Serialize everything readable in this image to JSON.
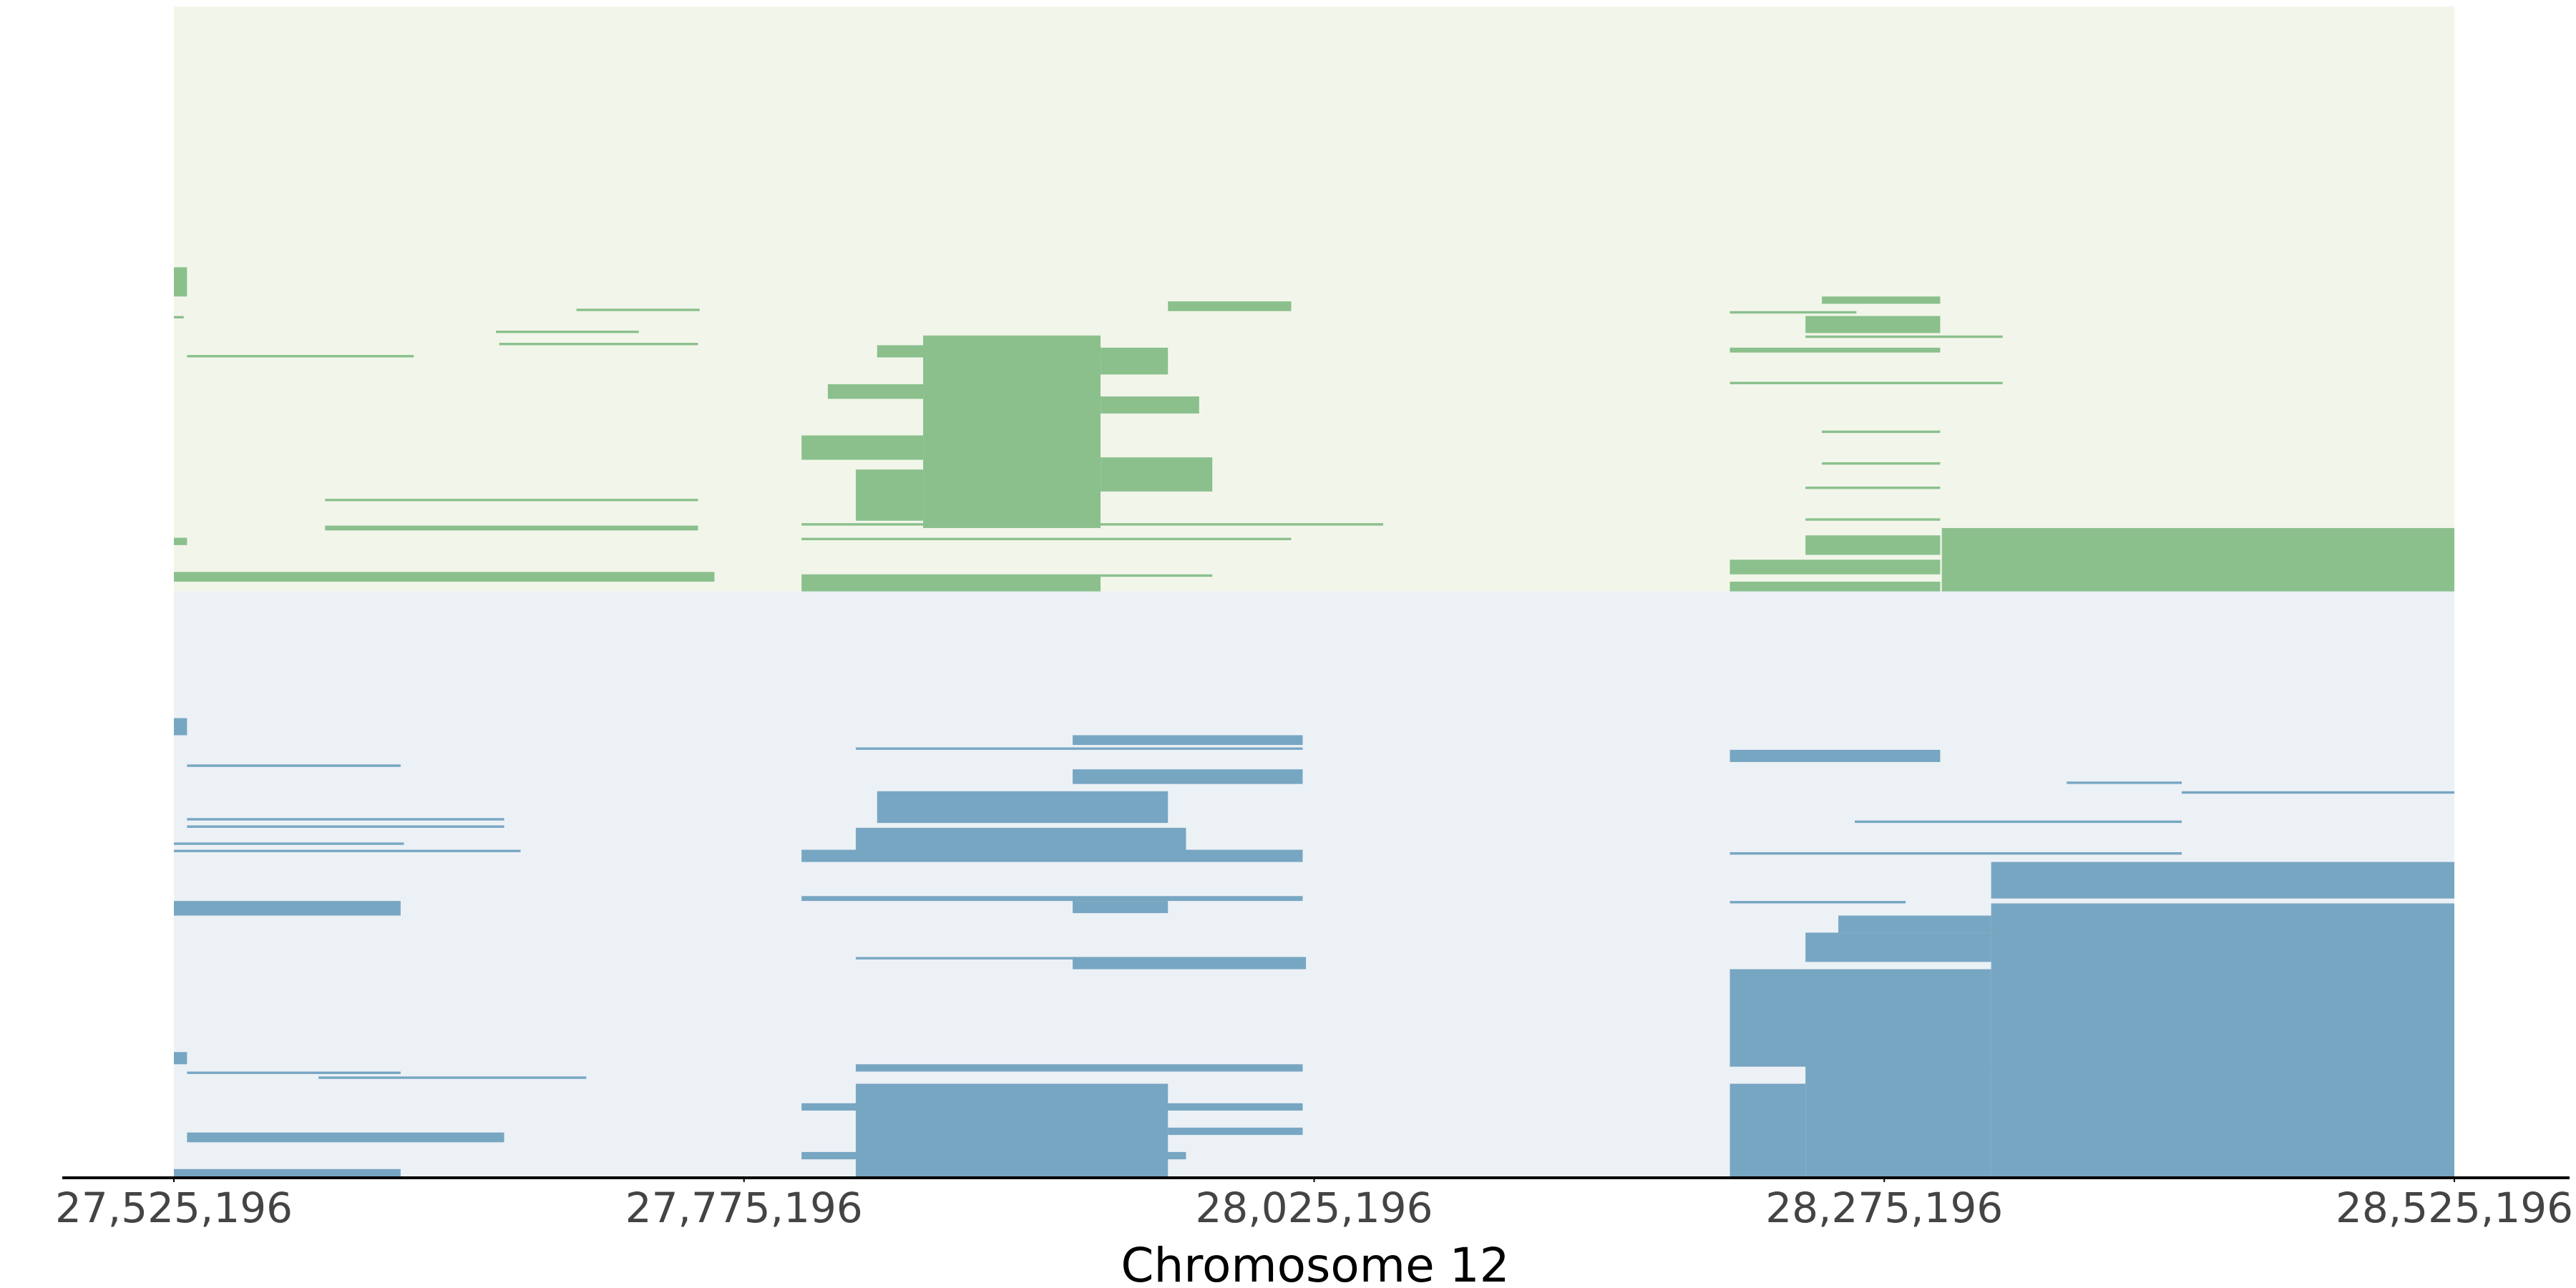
{
  "chart_data": {
    "type": "segments",
    "xlabel": "Chromosome 12",
    "xlim": [
      27525196,
      28525196
    ],
    "xticks": [
      {
        "value": 27525196,
        "label": "27,525,196"
      },
      {
        "value": 27775196,
        "label": "27,775,196"
      },
      {
        "value": 28025196,
        "label": "28,025,196"
      },
      {
        "value": 28275196,
        "label": "28,275,196"
      },
      {
        "value": 28525196,
        "label": "28,525,196"
      }
    ],
    "grid": false,
    "panels": [
      {
        "color": "#8bc08d",
        "background": "#f2f6ea",
        "ylim": [
          0,
          240
        ],
        "segments": [
          {
            "start": 27525196,
            "end": 27530960,
            "rows": [
              107,
              118
            ]
          },
          {
            "start": 27701719,
            "end": 27755756,
            "rows": [
              124,
              124
            ]
          },
          {
            "start": 27666414,
            "end": 27729094,
            "rows": [
              133,
              133
            ]
          },
          {
            "start": 27667855,
            "end": 27755033,
            "rows": [
              138,
              138
            ]
          },
          {
            "start": 27530960,
            "end": 27630389,
            "rows": [
              143,
              143
            ]
          },
          {
            "start": 27525196,
            "end": 27529519,
            "rows": [
              127,
              127
            ]
          },
          {
            "start": 27961099,
            "end": 28015136,
            "rows": [
              121,
              124
            ]
          },
          {
            "start": 28247858,
            "end": 28299738,
            "rows": [
              119,
              121
            ]
          },
          {
            "start": 28207510,
            "end": 28262992,
            "rows": [
              125,
              125
            ]
          },
          {
            "start": 28240654,
            "end": 28299738,
            "rows": [
              127,
              133
            ]
          },
          {
            "start": 28207510,
            "end": 28299738,
            "rows": [
              140,
              141
            ]
          },
          {
            "start": 28240654,
            "end": 28327116,
            "rows": [
              135,
              135
            ]
          },
          {
            "start": 27853744,
            "end": 27931558,
            "rows": [
              135,
              213
            ]
          },
          {
            "start": 27811955,
            "end": 27853744,
            "rows": [
              155,
              160
            ]
          },
          {
            "start": 27833570,
            "end": 27931558,
            "rows": [
              139,
              143
            ]
          },
          {
            "start": 27800427,
            "end": 27853744,
            "rows": [
              176,
              185
            ]
          },
          {
            "start": 27824204,
            "end": 27853744,
            "rows": [
              190,
              210
            ]
          },
          {
            "start": 27931558,
            "end": 27974788,
            "rows": [
              160,
              166
            ]
          },
          {
            "start": 27931558,
            "end": 27980552,
            "rows": [
              185,
              198
            ]
          },
          {
            "start": 27931558,
            "end": 27961099,
            "rows": [
              140,
              150
            ]
          },
          {
            "start": 27800427,
            "end": 28015136,
            "rows": [
              218,
              218
            ]
          },
          {
            "start": 27800427,
            "end": 28055484,
            "rows": [
              212,
              212
            ]
          },
          {
            "start": 27591482,
            "end": 27755033,
            "rows": [
              202,
              202
            ]
          },
          {
            "start": 27591482,
            "end": 27755033,
            "rows": [
              213,
              214
            ]
          },
          {
            "start": 27525196,
            "end": 27762241,
            "rows": [
              232,
              235
            ]
          },
          {
            "start": 27800427,
            "end": 27931558,
            "rows": [
              233,
              240
            ]
          },
          {
            "start": 27931558,
            "end": 27980552,
            "rows": [
              233,
              233
            ]
          },
          {
            "start": 28207510,
            "end": 28299738,
            "rows": [
              227,
              232
            ]
          },
          {
            "start": 28300458,
            "end": 28525196,
            "rows": [
              214,
              240
            ]
          },
          {
            "start": 28207510,
            "end": 28299738,
            "rows": [
              236,
              239
            ]
          },
          {
            "start": 28240654,
            "end": 28299738,
            "rows": [
              210,
              210
            ]
          },
          {
            "start": 28240654,
            "end": 28299738,
            "rows": [
              217,
              224
            ]
          },
          {
            "start": 28207510,
            "end": 28327116,
            "rows": [
              154,
              154
            ]
          },
          {
            "start": 28247858,
            "end": 28299738,
            "rows": [
              174,
              174
            ]
          },
          {
            "start": 28247858,
            "end": 28299738,
            "rows": [
              187,
              187
            ]
          },
          {
            "start": 28240654,
            "end": 28299738,
            "rows": [
              197,
              197
            ]
          },
          {
            "start": 27525196,
            "end": 27530960,
            "rows": [
              218,
              220
            ]
          }
        ]
      },
      {
        "color": "#77a6c2",
        "background": "#ecf1f6",
        "ylim": [
          0,
          240
        ],
        "segments": [
          {
            "start": 27525196,
            "end": 27530960,
            "rows": [
              52,
              58
            ]
          },
          {
            "start": 27530960,
            "end": 27624625,
            "rows": [
              71,
              71
            ]
          },
          {
            "start": 27530960,
            "end": 27670016,
            "rows": [
              93,
              93
            ]
          },
          {
            "start": 27530960,
            "end": 27670016,
            "rows": [
              96,
              96
            ]
          },
          {
            "start": 27525196,
            "end": 27626066,
            "rows": [
              103,
              103
            ]
          },
          {
            "start": 27525196,
            "end": 27677222,
            "rows": [
              106,
              106
            ]
          },
          {
            "start": 27525196,
            "end": 27624625,
            "rows": [
              127,
              132
            ]
          },
          {
            "start": 27525196,
            "end": 27530960,
            "rows": [
              189,
              193
            ]
          },
          {
            "start": 27530960,
            "end": 27624625,
            "rows": [
              197,
              197
            ]
          },
          {
            "start": 27530960,
            "end": 27670016,
            "rows": [
              222,
              225
            ]
          },
          {
            "start": 27525196,
            "end": 27624625,
            "rows": [
              237,
              240
            ]
          },
          {
            "start": 27588600,
            "end": 27706042,
            "rows": [
              199,
              199
            ]
          },
          {
            "start": 27919311,
            "end": 28020180,
            "rows": [
              59,
              62
            ]
          },
          {
            "start": 27824204,
            "end": 28020180,
            "rows": [
              64,
              64
            ]
          },
          {
            "start": 27919311,
            "end": 28020180,
            "rows": [
              73,
              78
            ]
          },
          {
            "start": 27833570,
            "end": 27961099,
            "rows": [
              82,
              94
            ]
          },
          {
            "start": 27824204,
            "end": 27969024,
            "rows": [
              97,
              108
            ]
          },
          {
            "start": 27800427,
            "end": 28020180,
            "rows": [
              106,
              110
            ]
          },
          {
            "start": 27800427,
            "end": 28020180,
            "rows": [
              125,
              126
            ]
          },
          {
            "start": 27919311,
            "end": 27961099,
            "rows": [
              127,
              131
            ]
          },
          {
            "start": 27919311,
            "end": 28021620,
            "rows": [
              150,
              154
            ]
          },
          {
            "start": 27824204,
            "end": 28020180,
            "rows": [
              150,
              150
            ]
          },
          {
            "start": 27824204,
            "end": 28020180,
            "rows": [
              194,
              196
            ]
          },
          {
            "start": 27824204,
            "end": 27961099,
            "rows": [
              202,
              240
            ]
          },
          {
            "start": 27800427,
            "end": 28020180,
            "rows": [
              210,
              212
            ]
          },
          {
            "start": 27961099,
            "end": 28020180,
            "rows": [
              220,
              222
            ]
          },
          {
            "start": 27800427,
            "end": 27969024,
            "rows": [
              230,
              232
            ]
          },
          {
            "start": 28207510,
            "end": 28299738,
            "rows": [
              65,
              69
            ]
          },
          {
            "start": 28207510,
            "end": 28405652,
            "rows": [
              107,
              107
            ]
          },
          {
            "start": 28262268,
            "end": 28405652,
            "rows": [
              94,
              94
            ]
          },
          {
            "start": 28355216,
            "end": 28405652,
            "rows": [
              78,
              78
            ]
          },
          {
            "start": 28405652,
            "end": 28525196,
            "rows": [
              82,
              82
            ]
          },
          {
            "start": 28322073,
            "end": 28525196,
            "rows": [
              111,
              125
            ]
          },
          {
            "start": 28322073,
            "end": 28525196,
            "rows": [
              128,
              240
            ]
          },
          {
            "start": 28240654,
            "end": 28322073,
            "rows": [
              140,
              151
            ]
          },
          {
            "start": 28255064,
            "end": 28322073,
            "rows": [
              133,
              139
            ]
          },
          {
            "start": 28207510,
            "end": 28322073,
            "rows": [
              155,
              194
            ]
          },
          {
            "start": 28240654,
            "end": 28322073,
            "rows": [
              194,
              240
            ]
          },
          {
            "start": 28207510,
            "end": 28240654,
            "rows": [
              202,
              240
            ]
          },
          {
            "start": 28207510,
            "end": 28284607,
            "rows": [
              127,
              127
            ]
          }
        ]
      }
    ]
  }
}
